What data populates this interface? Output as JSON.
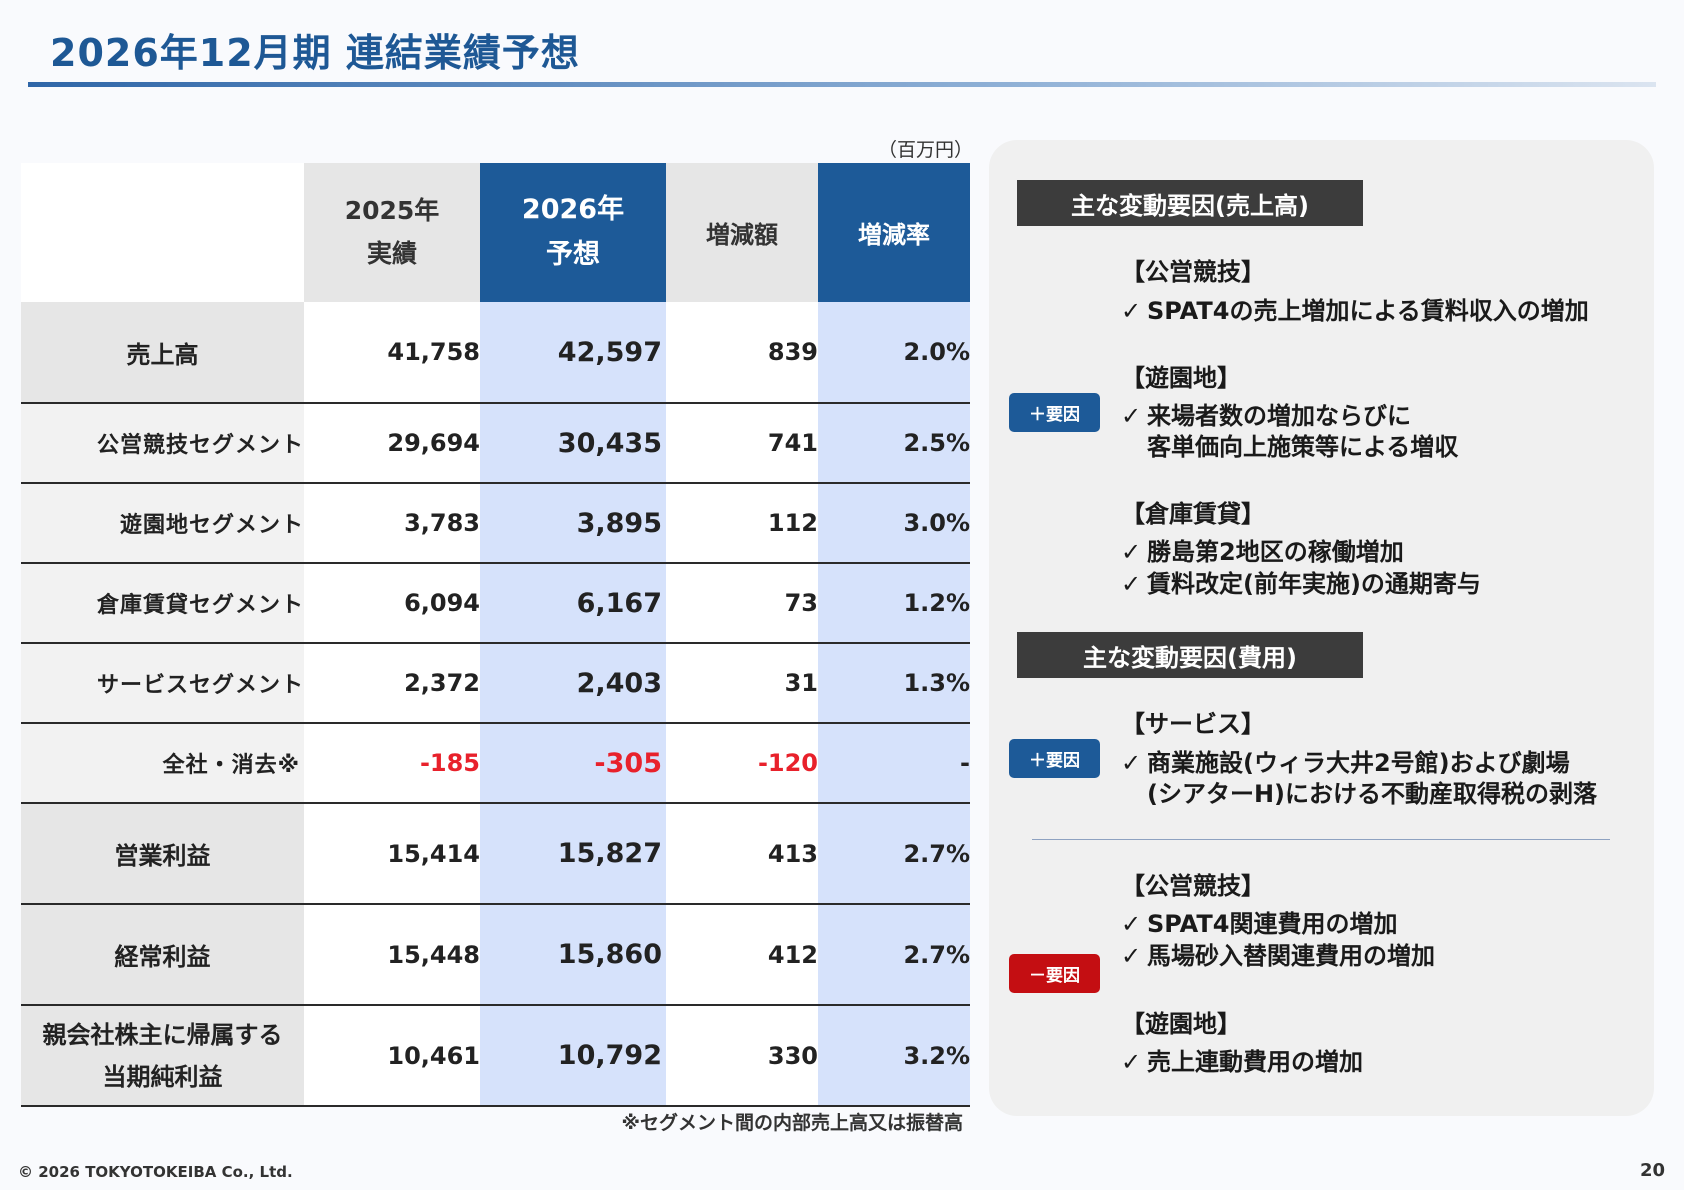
{
  "header": {
    "title": "2026年12月期 連結業績予想"
  },
  "table": {
    "unit": "（百万円）",
    "headers": {
      "y2025": [
        "2025年",
        "実績"
      ],
      "y2026": [
        "2026年",
        "予想"
      ],
      "diff": "増減額",
      "rate": "増減率"
    },
    "rows": [
      {
        "label": "売上高",
        "v2025": "41,758",
        "v2026": "42,597",
        "diff": "839",
        "rate": "2.0%"
      },
      {
        "label": "公営競技セグメント",
        "v2025": "29,694",
        "v2026": "30,435",
        "diff": "741",
        "rate": "2.5%"
      },
      {
        "label": "遊園地セグメント",
        "v2025": "3,783",
        "v2026": "3,895",
        "diff": "112",
        "rate": "3.0%"
      },
      {
        "label": "倉庫賃貸セグメント",
        "v2025": "6,094",
        "v2026": "6,167",
        "diff": "73",
        "rate": "1.2%"
      },
      {
        "label": "サービスセグメント",
        "v2025": "2,372",
        "v2026": "2,403",
        "diff": "31",
        "rate": "1.3%"
      },
      {
        "label": "全社・消去※",
        "v2025": "-185",
        "v2026": "-305",
        "diff": "-120",
        "rate": "-"
      },
      {
        "label": "営業利益",
        "v2025": "15,414",
        "v2026": "15,827",
        "diff": "413",
        "rate": "2.7%"
      },
      {
        "label": "経常利益",
        "v2025": "15,448",
        "v2026": "15,860",
        "diff": "412",
        "rate": "2.7%"
      },
      {
        "label": [
          "親会社株主に帰属する",
          "当期純利益"
        ],
        "v2025": "10,461",
        "v2026": "10,792",
        "diff": "330",
        "rate": "3.2%"
      }
    ],
    "footnote": "※セグメント間の内部売上高又は振替高"
  },
  "factors": {
    "sales": {
      "heading": "主な変動要因(売上高)",
      "badge": "＋要因",
      "groups": [
        {
          "category": "【公営競技】",
          "items": [
            [
              "SPAT4の売上増加による賃料収入の増加"
            ]
          ]
        },
        {
          "category": "【遊園地】",
          "items": [
            [
              "来場者数の増加ならびに",
              "客単価向上施策等による増収"
            ]
          ]
        },
        {
          "category": "【倉庫賃貸】",
          "items": [
            [
              "勝島第2地区の稼働増加"
            ],
            [
              "賃料改定(前年実施)の通期寄与"
            ]
          ]
        }
      ]
    },
    "costs": {
      "heading": "主な変動要因(費用)",
      "plus_badge": "＋要因",
      "minus_badge": "－要因",
      "plus_groups": [
        {
          "category": "【サービス】",
          "items": [
            [
              "商業施設(ウィラ大井2号館)および劇場",
              "(シアターH)における不動産取得税の剥落"
            ]
          ]
        }
      ],
      "minus_groups": [
        {
          "category": "【公営競技】",
          "items": [
            [
              "SPAT4関連費用の増加"
            ],
            [
              "馬場砂入替関連費用の増加"
            ]
          ]
        },
        {
          "category": "【遊園地】",
          "items": [
            [
              "売上連動費用の増加"
            ]
          ]
        }
      ]
    },
    "check_mark": "✓"
  },
  "footer": {
    "copyright": "© 2026 TOKYOTOKEIBA Co., Ltd.",
    "page": "20"
  },
  "colors": {
    "title": "#1e5895",
    "header_blue": "#1d5a98",
    "highlight_col": "#d6e2fb",
    "negative": "#e8212b",
    "minus_badge": "#c40e12",
    "section_head": "#3c3c3c"
  }
}
